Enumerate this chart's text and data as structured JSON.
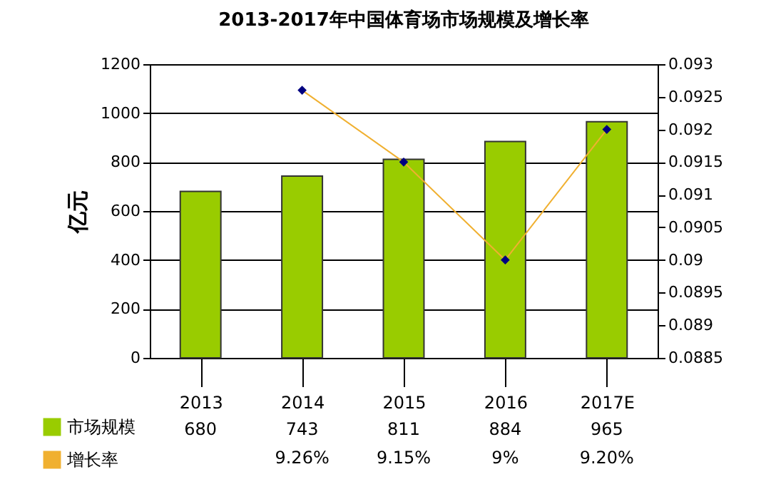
{
  "chart_data": {
    "type": "bar",
    "title": "2013-2017年中国体育场市场规模及增长率",
    "ylabel": "亿元",
    "categories": [
      "2013",
      "2014",
      "2015",
      "2016",
      "2017E"
    ],
    "series": [
      {
        "name": "市场规模",
        "color": "#99cc00",
        "values": [
          680,
          743,
          811,
          884,
          965
        ],
        "value_labels": [
          "680",
          "743",
          "811",
          "884",
          "965"
        ]
      },
      {
        "name": "增长率",
        "type": "line",
        "axis": "y2",
        "color": "#f0b030",
        "marker": "diamond",
        "values": [
          null,
          0.0926,
          0.0915,
          0.09,
          0.092
        ],
        "value_labels": [
          null,
          "9.26%",
          "9.15%",
          "9%",
          "9.20%"
        ]
      }
    ],
    "ylim": [
      0,
      1200
    ],
    "yticks": [
      0,
      200,
      400,
      600,
      800,
      1000,
      1200
    ],
    "y2lim": [
      0.0885,
      0.093
    ],
    "y2ticks": [
      0.0885,
      0.089,
      0.0895,
      0.09,
      0.0905,
      0.091,
      0.0915,
      0.092,
      0.0925,
      0.093
    ],
    "grid": "y",
    "legend": "bottom left"
  }
}
